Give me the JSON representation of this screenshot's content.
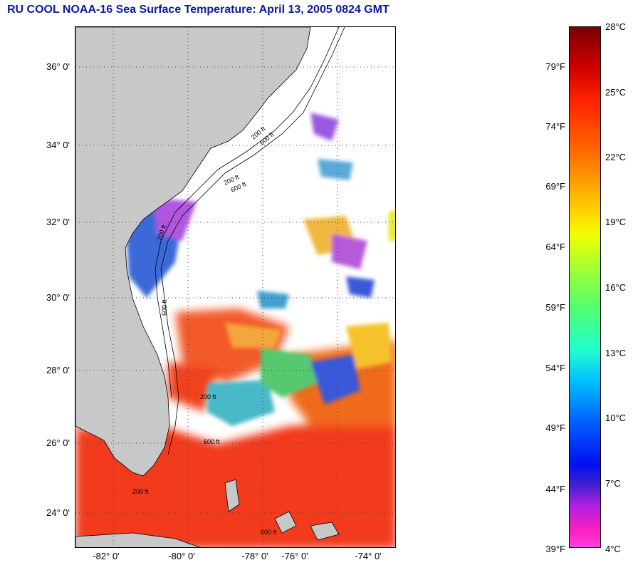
{
  "title": "RU COOL  NOAA-16  Sea Surface Temperature:  April 13, 2005 0824 GMT",
  "map": {
    "lat_labels": [
      "36° 0'",
      "34° 0'",
      "32° 0'",
      "30° 0'",
      "28° 0'",
      "26° 0'",
      "24° 0'"
    ],
    "lon_labels": [
      "-82° 0'",
      "-80° 0'",
      "-78° 0'",
      "-76° 0'",
      "-74° 0'"
    ],
    "contour_labels": [
      "200 ft",
      "600 ft",
      "200 ft",
      "600 ft",
      "200 ft",
      "600 ft",
      "200 ft",
      "600 ft",
      "200 ft",
      "600 ft"
    ]
  },
  "colorbar": {
    "fahrenheit": [
      "79°F",
      "74°F",
      "69°F",
      "64°F",
      "59°F",
      "54°F",
      "49°F",
      "44°F",
      "39°F"
    ],
    "celsius": [
      "28°C",
      "25°C",
      "22°C",
      "19°C",
      "16°C",
      "13°C",
      "10°C",
      "7°C",
      "4°C"
    ]
  },
  "colors": {
    "title": "#0a1a9c",
    "land": "#c8c8c8",
    "cloud": "#ffffff"
  }
}
